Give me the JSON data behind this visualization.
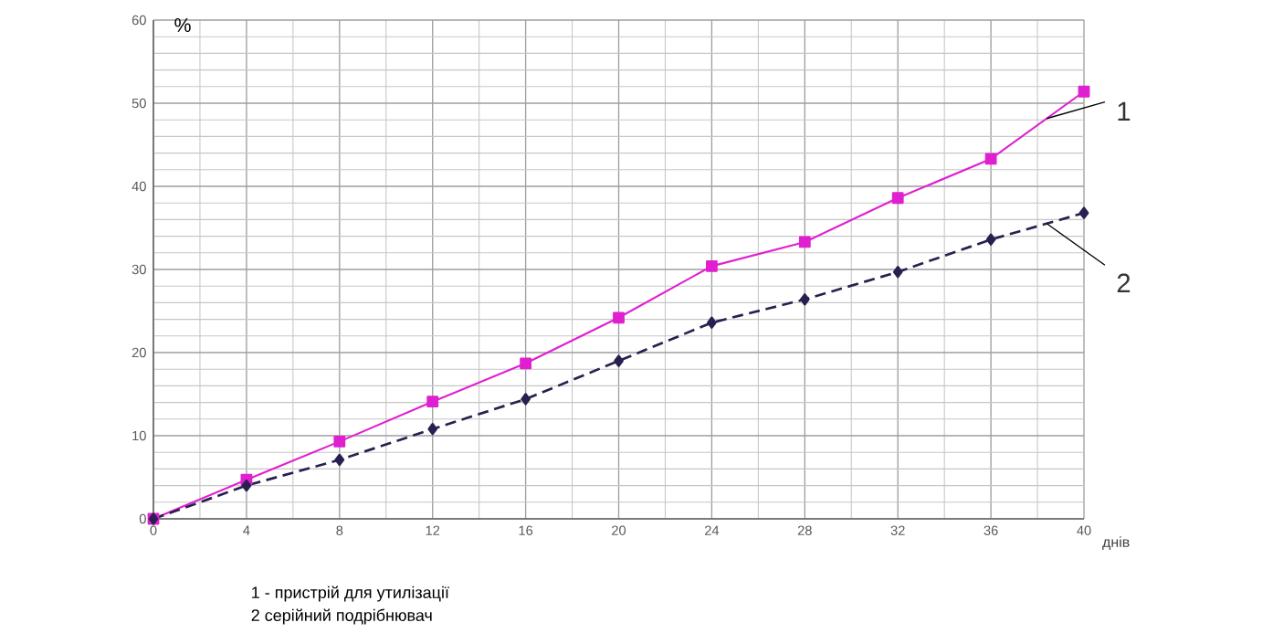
{
  "chart_data": {
    "type": "line",
    "x": [
      0,
      4,
      8,
      12,
      16,
      20,
      24,
      28,
      32,
      36,
      40
    ],
    "series": [
      {
        "name": "1",
        "color": "#e020d0",
        "marker": "square",
        "line_style": "solid",
        "values": [
          0,
          4.7,
          9.3,
          14.1,
          18.7,
          24.2,
          30.4,
          33.3,
          38.6,
          43.3,
          51.4
        ]
      },
      {
        "name": "2",
        "color": "#2a2050",
        "marker": "diamond",
        "line_style": "dashed",
        "values": [
          0,
          4.0,
          7.1,
          10.8,
          14.4,
          19.0,
          23.6,
          26.4,
          29.7,
          33.6,
          36.8
        ]
      }
    ],
    "xlim": [
      0,
      40
    ],
    "ylim": [
      0,
      60
    ],
    "xticks": [
      0,
      4,
      8,
      12,
      16,
      20,
      24,
      28,
      32,
      36,
      40
    ],
    "yticks": [
      0,
      10,
      20,
      30,
      40,
      50,
      60
    ],
    "xlabel": "днів",
    "ylabel": "%",
    "grid": true,
    "annotations": [
      "1 - пристрій для утилізації",
      "2 серійний подрібнювач"
    ]
  }
}
